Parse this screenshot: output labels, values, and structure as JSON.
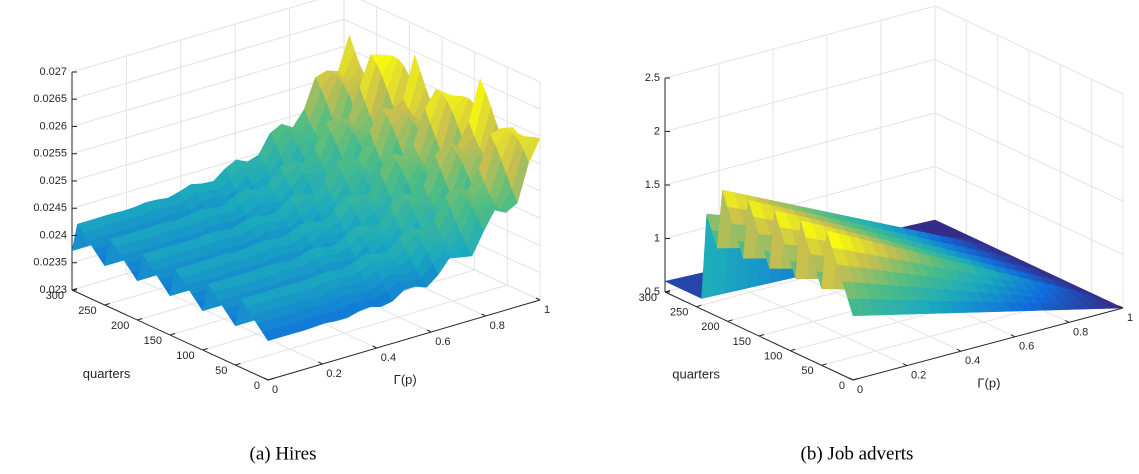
{
  "chart_data": [
    {
      "type": "surface",
      "caption": "(a) Hires",
      "xlabel": "Γ(p)",
      "ylabel": "quarters",
      "xlim": [
        0,
        1
      ],
      "ylim": [
        0,
        300
      ],
      "zlim": [
        0.023,
        0.027
      ],
      "xticks": [
        0,
        0.2,
        0.4,
        0.6,
        0.8,
        1
      ],
      "yticks": [
        0,
        50,
        100,
        150,
        200,
        250,
        300
      ],
      "zticks": [
        0.023,
        0.0235,
        0.024,
        0.0245,
        0.025,
        0.0255,
        0.026,
        0.0265,
        0.027
      ],
      "grid": true
    },
    {
      "type": "surface",
      "caption": "(b) Job adverts",
      "xlabel": "Γ(p)",
      "ylabel": "quarters",
      "xlim": [
        0,
        1
      ],
      "ylim": [
        0,
        300
      ],
      "zlim": [
        0.5,
        2.5
      ],
      "xticks": [
        0,
        0.2,
        0.4,
        0.6,
        0.8,
        1
      ],
      "yticks": [
        0,
        50,
        100,
        150,
        200,
        250,
        300
      ],
      "zticks": [
        0.5,
        1,
        1.5,
        2,
        2.5
      ],
      "grid": true
    }
  ]
}
